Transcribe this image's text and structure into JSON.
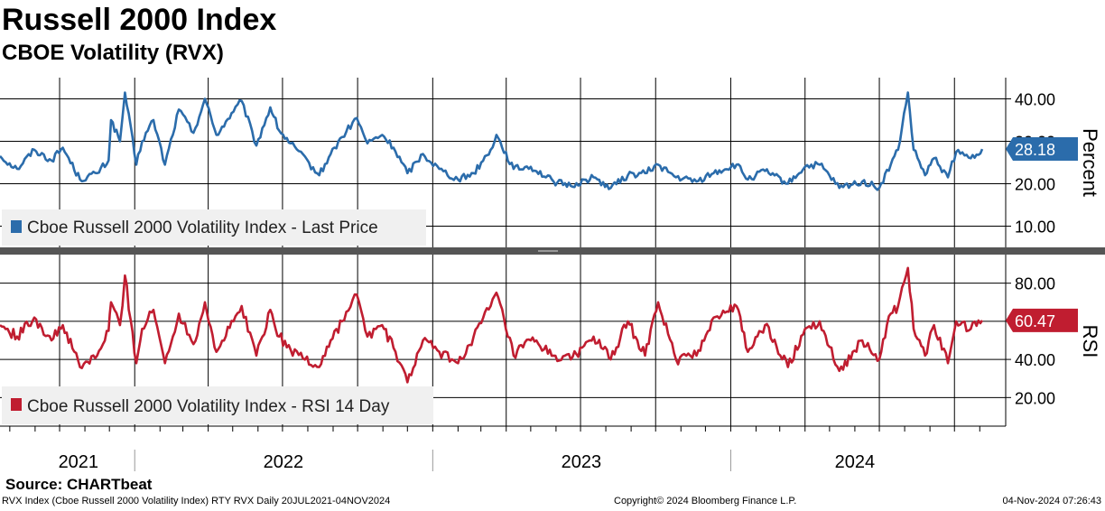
{
  "header": {
    "title": "Russell 2000 Index",
    "subtitle": "CBOE Volatility (RVX)"
  },
  "footer": {
    "source": "Source: CHARTbeat",
    "description": "RVX Index (Cboe Russell 2000 Volatility Index) RTY RVX  Daily 20JUL2021-04NOV2024",
    "copyright": "Copyright© 2024 Bloomberg Finance L.P.",
    "timestamp": "04-Nov-2024 07:26:43"
  },
  "colors": {
    "price": "#2b6cab",
    "rsi": "#c01d30",
    "divider": "#555555",
    "legend_bg": "#f0f0f0"
  },
  "chart_data": [
    {
      "type": "line",
      "panel": "top",
      "ylabel": "Percent",
      "ylim": [
        5,
        45
      ],
      "yticks": [
        "10.00",
        "20.00",
        "30.00",
        "40.00"
      ],
      "ytick_values": [
        10,
        20,
        30,
        40
      ],
      "last_value": 28.18,
      "last_value_label": "28.18",
      "series": [
        {
          "name": "Cboe Russell 2000 Volatility Index - Last Price",
          "x": [
            "2021-07-20",
            "2021-08-10",
            "2021-08-31",
            "2021-09-21",
            "2021-10-05",
            "2021-10-26",
            "2021-11-16",
            "2021-11-30",
            "2021-12-03",
            "2021-12-14",
            "2021-12-20",
            "2022-01-03",
            "2022-01-10",
            "2022-01-24",
            "2022-02-07",
            "2022-02-24",
            "2022-03-14",
            "2022-03-28",
            "2022-04-11",
            "2022-05-02",
            "2022-05-12",
            "2022-05-30",
            "2022-06-16",
            "2022-06-27",
            "2022-07-11",
            "2022-08-15",
            "2022-08-29",
            "2022-09-12",
            "2022-09-30",
            "2022-10-13",
            "2022-10-31",
            "2022-11-14",
            "2022-12-01",
            "2022-12-20",
            "2023-01-09",
            "2023-02-01",
            "2023-02-20",
            "2023-03-13",
            "2023-03-20",
            "2023-04-10",
            "2023-05-01",
            "2023-05-29",
            "2023-06-19",
            "2023-07-17",
            "2023-08-07",
            "2023-08-28",
            "2023-09-18",
            "2023-10-04",
            "2023-10-26",
            "2023-11-20",
            "2023-12-11",
            "2024-01-08",
            "2024-01-22",
            "2024-02-12",
            "2024-03-11",
            "2024-04-01",
            "2024-04-19",
            "2024-05-13",
            "2024-06-10",
            "2024-07-01",
            "2024-07-15",
            "2024-07-24",
            "2024-08-05",
            "2024-08-12",
            "2024-08-26",
            "2024-09-06",
            "2024-09-23",
            "2024-10-03",
            "2024-10-21",
            "2024-11-04"
          ],
          "values": [
            26.5,
            23.5,
            28.0,
            25.5,
            28.5,
            21.0,
            22.5,
            25.5,
            35.0,
            30.0,
            41.5,
            24.5,
            30.0,
            35.0,
            24.5,
            37.5,
            32.0,
            40.0,
            31.5,
            37.0,
            39.5,
            29.0,
            38.0,
            32.5,
            29.5,
            22.0,
            27.0,
            31.0,
            35.5,
            29.5,
            31.5,
            28.5,
            22.5,
            27.0,
            23.5,
            21.0,
            22.5,
            28.0,
            31.5,
            23.5,
            24.0,
            20.5,
            19.5,
            21.5,
            19.0,
            22.0,
            22.5,
            24.5,
            21.5,
            20.5,
            22.5,
            24.5,
            21.0,
            23.0,
            20.0,
            24.0,
            24.5,
            19.0,
            20.5,
            19.0,
            24.5,
            28.0,
            41.5,
            28.0,
            22.0,
            26.0,
            21.5,
            27.5,
            26.0,
            28.18
          ]
        }
      ]
    },
    {
      "type": "line",
      "panel": "bottom",
      "ylabel": "RSI",
      "ylim": [
        5,
        95
      ],
      "yticks": [
        "20.00",
        "40.00",
        "60.00",
        "80.00"
      ],
      "ytick_values": [
        20,
        40,
        60,
        80
      ],
      "last_value": 60.47,
      "last_value_label": "60.47",
      "series": [
        {
          "name": "Cboe Russell 2000 Volatility Index - RSI 14 Day",
          "x": [
            "2021-07-20",
            "2021-08-10",
            "2021-08-31",
            "2021-09-21",
            "2021-10-05",
            "2021-10-26",
            "2021-11-16",
            "2021-11-30",
            "2021-12-03",
            "2021-12-14",
            "2021-12-20",
            "2022-01-03",
            "2022-01-10",
            "2022-01-24",
            "2022-02-07",
            "2022-02-24",
            "2022-03-14",
            "2022-03-28",
            "2022-04-11",
            "2022-05-02",
            "2022-05-12",
            "2022-05-30",
            "2022-06-16",
            "2022-06-27",
            "2022-07-11",
            "2022-08-15",
            "2022-08-29",
            "2022-09-12",
            "2022-09-30",
            "2022-10-13",
            "2022-10-31",
            "2022-11-14",
            "2022-12-01",
            "2022-12-20",
            "2023-01-09",
            "2023-02-01",
            "2023-02-20",
            "2023-03-13",
            "2023-03-20",
            "2023-04-10",
            "2023-05-01",
            "2023-05-29",
            "2023-06-19",
            "2023-07-17",
            "2023-08-07",
            "2023-08-28",
            "2023-09-18",
            "2023-10-04",
            "2023-10-26",
            "2023-11-20",
            "2023-12-11",
            "2024-01-08",
            "2024-01-22",
            "2024-02-12",
            "2024-03-11",
            "2024-04-01",
            "2024-04-19",
            "2024-05-13",
            "2024-06-10",
            "2024-07-01",
            "2024-07-15",
            "2024-07-24",
            "2024-08-05",
            "2024-08-12",
            "2024-08-26",
            "2024-09-06",
            "2024-09-23",
            "2024-10-03",
            "2024-10-21",
            "2024-11-04"
          ],
          "values": [
            58.0,
            52.0,
            62.0,
            50.0,
            58.0,
            36.0,
            42.0,
            55.0,
            70.0,
            58.0,
            84.0,
            38.0,
            56.0,
            66.0,
            38.0,
            64.0,
            48.0,
            70.0,
            44.0,
            60.0,
            68.0,
            42.0,
            66.0,
            52.0,
            45.0,
            36.0,
            50.0,
            60.0,
            74.0,
            52.0,
            58.0,
            46.0,
            28.0,
            50.0,
            44.0,
            38.0,
            52.0,
            68.0,
            75.0,
            42.0,
            50.0,
            42.0,
            40.0,
            52.0,
            40.0,
            60.0,
            42.0,
            70.0,
            40.0,
            42.0,
            62.0,
            68.0,
            44.0,
            58.0,
            36.0,
            56.0,
            60.0,
            34.0,
            50.0,
            40.0,
            64.0,
            68.0,
            88.0,
            56.0,
            42.0,
            58.0,
            38.0,
            60.0,
            56.0,
            60.47
          ]
        }
      ]
    }
  ],
  "x_axis": {
    "start": "2021-07-20",
    "end": "2024-11-04",
    "year_labels": [
      {
        "label": "2021",
        "at": "2021-10-24"
      },
      {
        "label": "2022",
        "at": "2022-07-02"
      },
      {
        "label": "2023",
        "at": "2023-07-02"
      },
      {
        "label": "2024",
        "at": "2024-06-01"
      }
    ],
    "year_boundaries": [
      "2022-01-01",
      "2023-01-01",
      "2024-01-01"
    ],
    "quarter_gridlines": [
      "2021-10-01",
      "2022-01-01",
      "2022-04-01",
      "2022-07-01",
      "2022-10-01",
      "2023-01-01",
      "2023-04-01",
      "2023-07-01",
      "2023-10-01",
      "2024-01-01",
      "2024-04-01",
      "2024-07-01",
      "2024-10-01"
    ]
  }
}
